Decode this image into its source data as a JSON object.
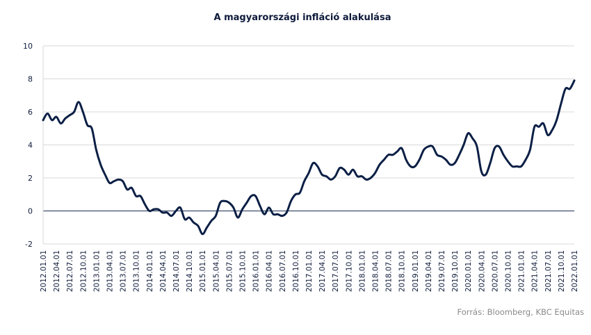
{
  "chart_data": {
    "type": "line",
    "title": "A magyarországi infláció alakulása",
    "source": "Forrás: Bloomberg, KBC Equitas",
    "xlabel": "",
    "ylabel": "",
    "ylim": [
      -2,
      10
    ],
    "yticks": [
      "-2",
      "0",
      "2",
      "4",
      "6",
      "8",
      "10"
    ],
    "grid": true,
    "colors": {
      "line": "#0b1f45",
      "grid": "#d9d9d9",
      "zero_line": "#1a2c52"
    },
    "xticks": [
      "2012.01.01",
      "2012.04.01",
      "2012.07.01",
      "2012.10.01",
      "2013.01.01",
      "2013.04.01",
      "2013.07.01",
      "2013.10.01",
      "2014.01.01",
      "2014.04.01",
      "2014.07.01",
      "2014.10.01",
      "2015.01.01",
      "2015.04.01",
      "2015.07.01",
      "2015.10.01",
      "2016.01.01",
      "2016.04.01",
      "2016.07.01",
      "2016.10.01",
      "2017.01.01",
      "2017.04.01",
      "2017.07.01",
      "2017.10.01",
      "2018.01.01",
      "2018.04.01",
      "2018.07.01",
      "2018.10.01",
      "2019.01.01",
      "2019.04.01",
      "2019.07.01",
      "2019.10.01",
      "2020.01.01",
      "2020.04.01",
      "2020.07.01",
      "2020.10.01",
      "2021.01.01",
      "2021.04.01",
      "2021.07.01",
      "2021.10.01",
      "2022.01.01"
    ],
    "series": [
      {
        "values": [
          5.5,
          5.9,
          5.5,
          5.7,
          5.3,
          5.6,
          5.8,
          6.0,
          6.6,
          6.0,
          5.2,
          5.0,
          3.7,
          2.8,
          2.2,
          1.7,
          1.8,
          1.9,
          1.8,
          1.3,
          1.4,
          0.9,
          0.9,
          0.4,
          0.0,
          0.1,
          0.1,
          -0.1,
          -0.1,
          -0.3,
          0.0,
          0.2,
          -0.5,
          -0.4,
          -0.7,
          -0.9,
          -1.4,
          -1.0,
          -0.6,
          -0.3,
          0.5,
          0.6,
          0.5,
          0.2,
          -0.4,
          0.1,
          0.5,
          0.9,
          0.9,
          0.3,
          -0.2,
          0.2,
          -0.2,
          -0.2,
          -0.3,
          -0.1,
          0.6,
          1.0,
          1.1,
          1.8,
          2.3,
          2.9,
          2.7,
          2.2,
          2.1,
          1.9,
          2.1,
          2.6,
          2.5,
          2.2,
          2.5,
          2.1,
          2.1,
          1.9,
          2.0,
          2.3,
          2.8,
          3.1,
          3.4,
          3.4,
          3.6,
          3.8,
          3.1,
          2.7,
          2.7,
          3.1,
          3.7,
          3.9,
          3.9,
          3.4,
          3.3,
          3.1,
          2.8,
          2.9,
          3.4,
          4.0,
          4.7,
          4.4,
          3.9,
          2.4,
          2.2,
          2.9,
          3.8,
          3.9,
          3.4,
          3.0,
          2.7,
          2.7,
          2.7,
          3.1,
          3.7,
          5.1,
          5.1,
          5.3,
          4.6,
          4.9,
          5.5,
          6.5,
          7.4,
          7.4,
          7.9
        ]
      }
    ]
  }
}
